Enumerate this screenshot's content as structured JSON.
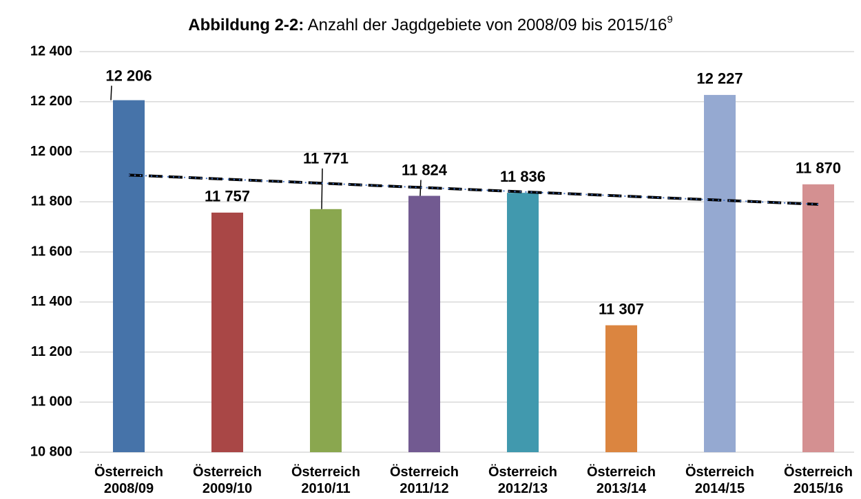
{
  "chart_data": {
    "type": "bar",
    "title_prefix": "Abbildung 2-2:",
    "title": "Anzahl der Jagdgebiete von 2008/09 bis 2015/16",
    "title_footnote": "9",
    "categories": [
      "Österreich 2008/09",
      "Österreich 2009/10",
      "Österreich 2010/11",
      "Österreich 2011/12",
      "Österreich 2012/13",
      "Österreich 2013/14",
      "Österreich 2014/15",
      "Österreich 2015/16"
    ],
    "values": [
      12206,
      11757,
      11771,
      11824,
      11836,
      11307,
      12227,
      11870
    ],
    "value_labels": [
      "12 206",
      "11 757",
      "11 771",
      "11 824",
      "11 836",
      "11 307",
      "12 227",
      "11 870"
    ],
    "colors": [
      "#4673a9",
      "#a94746",
      "#8aa74f",
      "#725a91",
      "#4199ae",
      "#db8540",
      "#95a9d1",
      "#d49091"
    ],
    "trendline": {
      "values": [
        11907,
        11790
      ],
      "color": "#000000",
      "color2": "#4472c4"
    },
    "ylim": [
      10800,
      12400
    ],
    "yticks": [
      {
        "value": 10800,
        "label": "10 800"
      },
      {
        "value": 11000,
        "label": "11 000"
      },
      {
        "value": 11200,
        "label": "11 200"
      },
      {
        "value": 11400,
        "label": "11 400"
      },
      {
        "value": 11600,
        "label": "11 600"
      },
      {
        "value": 11800,
        "label": "11 800"
      },
      {
        "value": 12000,
        "label": "12 000"
      },
      {
        "value": 12200,
        "label": "12 200"
      },
      {
        "value": 12400,
        "label": "12 400"
      }
    ],
    "grid": true
  }
}
